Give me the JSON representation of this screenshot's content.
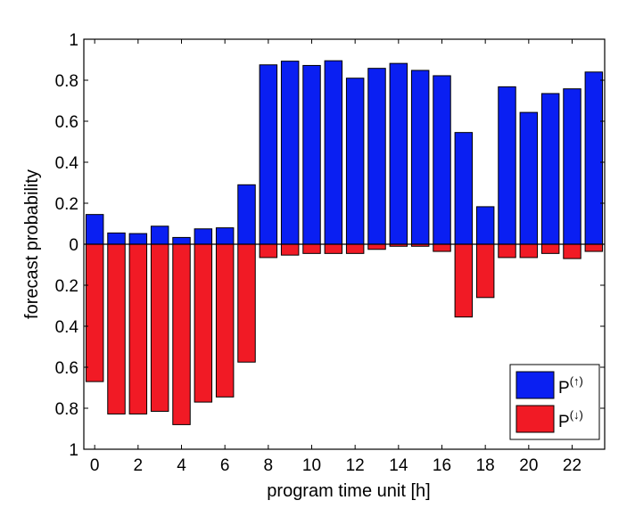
{
  "chart_data": {
    "type": "bar",
    "xlabel": "program time unit [h]",
    "ylabel": "forecast probability",
    "x": [
      0,
      1,
      2,
      3,
      4,
      5,
      6,
      7,
      8,
      9,
      10,
      11,
      12,
      13,
      14,
      15,
      16,
      17,
      18,
      19,
      20,
      21,
      22,
      23
    ],
    "xticks": [
      0,
      2,
      4,
      6,
      8,
      10,
      12,
      14,
      16,
      18,
      20,
      22
    ],
    "xlim": [
      -0.5,
      23.5
    ],
    "ylim": [
      -1,
      1
    ],
    "ytick_values": [
      1,
      0.8,
      0.6,
      0.4,
      0.2,
      0,
      -0.2,
      -0.4,
      -0.6,
      -0.8,
      -1
    ],
    "ytick_labels": [
      "1",
      "0.8",
      "0.6",
      "0.4",
      "0.2",
      "0",
      "0.2",
      "0.4",
      "0.6",
      "0.8",
      "1"
    ],
    "series": [
      {
        "name": "P(↑)",
        "legend_base": "P",
        "legend_sup": "(↑)",
        "direction": "up",
        "color": "#0a1ff2",
        "values": [
          0.145,
          0.055,
          0.052,
          0.088,
          0.033,
          0.075,
          0.08,
          0.29,
          0.875,
          0.893,
          0.872,
          0.895,
          0.81,
          0.858,
          0.882,
          0.848,
          0.822,
          0.545,
          0.183,
          0.768,
          0.643,
          0.735,
          0.758,
          0.84
        ]
      },
      {
        "name": "P(↓)",
        "legend_base": "P",
        "legend_sup": "(↓)",
        "direction": "down",
        "color": "#f11a25",
        "values": [
          0.67,
          0.828,
          0.828,
          0.815,
          0.88,
          0.77,
          0.745,
          0.575,
          0.065,
          0.053,
          0.045,
          0.045,
          0.045,
          0.025,
          0.01,
          0.01,
          0.035,
          0.355,
          0.26,
          0.065,
          0.065,
          0.045,
          0.07,
          0.035
        ]
      }
    ],
    "legend_position": "bottom-right",
    "grid": false
  }
}
